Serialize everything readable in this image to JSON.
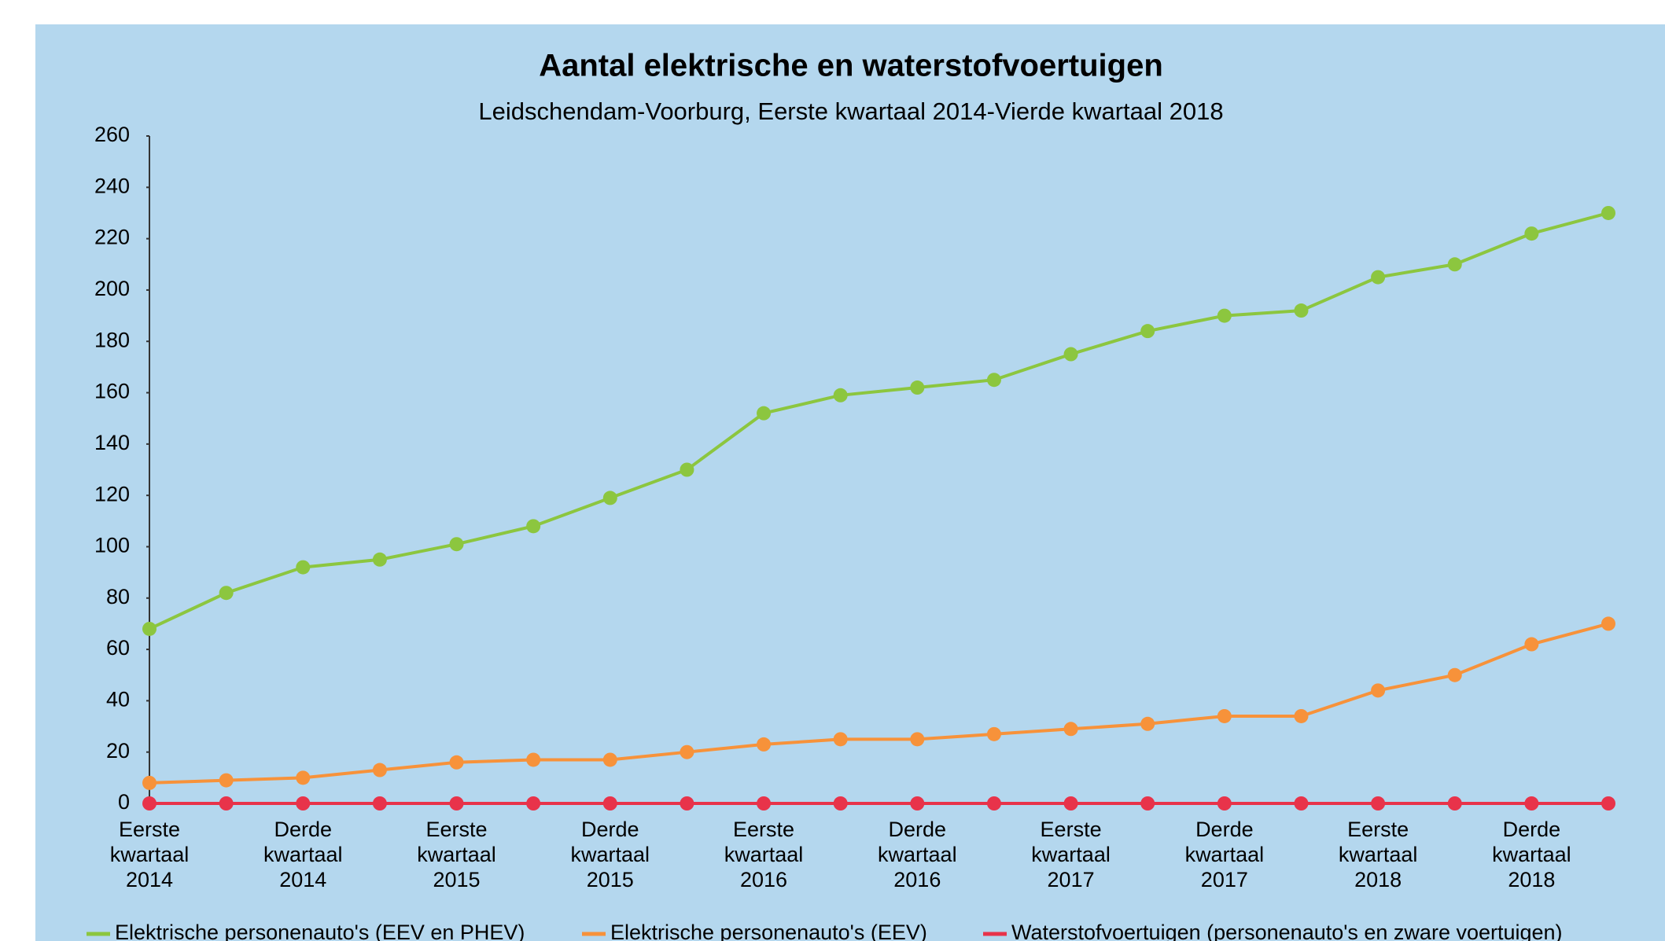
{
  "chart_data": {
    "type": "line",
    "title": "Aantal elektrische en waterstofvoertuigen",
    "subtitle": "Leidschendam-Voorburg, Eerste kwartaal 2014-Vierde kwartaal 2018",
    "categories": [
      "Eerste kwartaal 2014",
      null,
      "Derde kwartaal 2014",
      null,
      "Eerste kwartaal 2015",
      null,
      "Derde kwartaal 2015",
      null,
      "Eerste kwartaal 2016",
      null,
      "Derde kwartaal 2016",
      null,
      "Eerste kwartaal 2017",
      null,
      "Derde kwartaal 2017",
      null,
      "Eerste kwartaal 2018",
      null,
      "Derde kwartaal 2018",
      null
    ],
    "series": [
      {
        "name": "Elektrische personenauto's (EEV en PHEV)",
        "color": "#8cc63f",
        "values": [
          68,
          82,
          92,
          95,
          101,
          108,
          119,
          130,
          152,
          159,
          162,
          165,
          175,
          184,
          190,
          192,
          205,
          210,
          222,
          230
        ]
      },
      {
        "name": "Elektrische personenauto's (EEV)",
        "color": "#f7923a",
        "values": [
          8,
          9,
          10,
          13,
          16,
          17,
          17,
          20,
          23,
          25,
          25,
          27,
          29,
          31,
          34,
          34,
          44,
          50,
          62,
          70
        ]
      },
      {
        "name": "Waterstofvoertuigen (personenauto's en zware voertuigen)",
        "color": "#e8334a",
        "values": [
          0,
          0,
          0,
          0,
          0,
          0,
          0,
          0,
          0,
          0,
          0,
          0,
          0,
          0,
          0,
          0,
          0,
          0,
          0,
          0
        ]
      }
    ],
    "ylim": [
      0,
      260
    ],
    "yticks": [
      0,
      20,
      40,
      60,
      80,
      100,
      120,
      140,
      160,
      180,
      200,
      220,
      240,
      260
    ],
    "grid": false,
    "legend": "bottom"
  }
}
